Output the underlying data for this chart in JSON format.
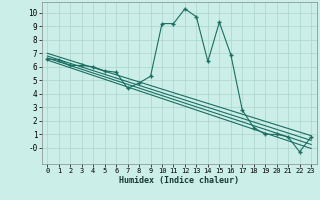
{
  "xlabel": "Humidex (Indice chaleur)",
  "bg_color": "#cceee8",
  "grid_color": "#aad4cc",
  "line_color": "#1a6e62",
  "xlim": [
    -0.5,
    23.5
  ],
  "ylim": [
    -1.2,
    10.8
  ],
  "xticks": [
    0,
    1,
    2,
    3,
    4,
    5,
    6,
    7,
    8,
    9,
    10,
    11,
    12,
    13,
    14,
    15,
    16,
    17,
    18,
    19,
    20,
    21,
    22,
    23
  ],
  "yticks": [
    0,
    1,
    2,
    3,
    4,
    5,
    6,
    7,
    8,
    9,
    10
  ],
  "ytick_labels": [
    "-0",
    "1",
    "2",
    "3",
    "4",
    "5",
    "6",
    "7",
    "8",
    "9",
    "10"
  ],
  "main_x": [
    0,
    1,
    2,
    3,
    4,
    5,
    6,
    7,
    8,
    9,
    10,
    11,
    12,
    13,
    14,
    15,
    16,
    17,
    18,
    19,
    20,
    21,
    22,
    23
  ],
  "main_y": [
    6.6,
    6.5,
    6.1,
    6.1,
    6.0,
    5.7,
    5.6,
    4.4,
    4.8,
    5.3,
    9.2,
    9.2,
    10.3,
    9.7,
    6.4,
    9.3,
    6.9,
    2.8,
    1.5,
    1.0,
    1.0,
    0.8,
    -0.3,
    0.8
  ],
  "line1_x": [
    0,
    23
  ],
  "line1_y": [
    7.0,
    0.9
  ],
  "line2_x": [
    0,
    23
  ],
  "line2_y": [
    6.8,
    0.55
  ],
  "line3_x": [
    0,
    23
  ],
  "line3_y": [
    6.65,
    0.25
  ],
  "line4_x": [
    0,
    23
  ],
  "line4_y": [
    6.5,
    -0.05
  ]
}
